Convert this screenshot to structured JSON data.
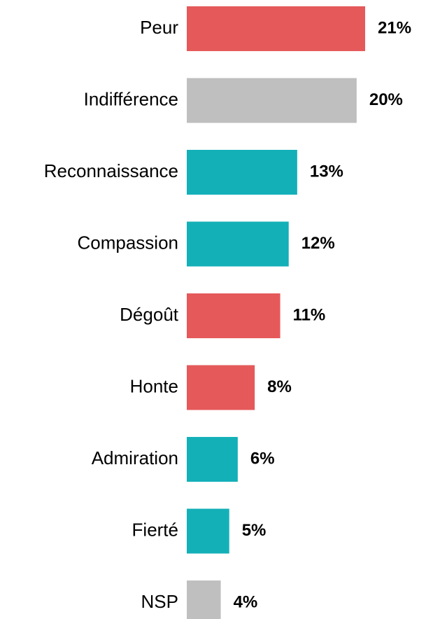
{
  "chart_data": {
    "type": "bar",
    "orientation": "horizontal",
    "categories": [
      "Peur",
      "Indifférence",
      "Reconnaissance",
      "Compassion",
      "Dégoût",
      "Honte",
      "Admiration",
      "Fierté",
      "NSP"
    ],
    "values": [
      21,
      20,
      13,
      12,
      11,
      8,
      6,
      5,
      4
    ],
    "value_labels": [
      "21%",
      "20%",
      "13%",
      "12%",
      "11%",
      "8%",
      "6%",
      "5%",
      "4%"
    ],
    "colors": [
      "#e5595a",
      "#bfbfbf",
      "#14b0b8",
      "#14b0b8",
      "#e5595a",
      "#e5595a",
      "#14b0b8",
      "#14b0b8",
      "#bfbfbf"
    ]
  }
}
